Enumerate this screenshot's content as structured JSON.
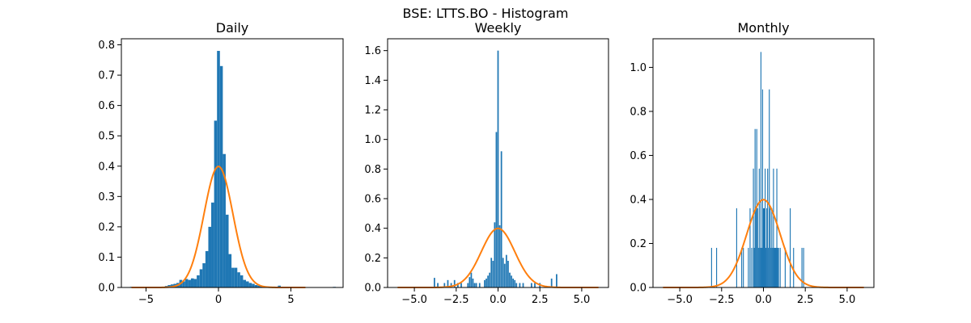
{
  "figure": {
    "title": "BSE: LTTS.BO - Histogram",
    "colors": {
      "bars": "#1f77b4",
      "normal_curve": "#ff7f0e"
    }
  },
  "chart_data": [
    {
      "type": "bar",
      "title": "Daily",
      "xlabel": "",
      "ylabel": "",
      "xlim": [
        -6.7,
        8.6
      ],
      "ylim": [
        0,
        0.82
      ],
      "xticks": [
        -5,
        0,
        5
      ],
      "xtick_labels": [
        "−5",
        "0",
        "5"
      ],
      "yticks": [
        0.0,
        0.1,
        0.2,
        0.3,
        0.4,
        0.5,
        0.6,
        0.7,
        0.8
      ],
      "ytick_labels": [
        "0.0",
        "0.1",
        "0.2",
        "0.3",
        "0.4",
        "0.5",
        "0.6",
        "0.7",
        "0.8"
      ],
      "bar_width": 0.2,
      "bars": [
        {
          "x": -6.0,
          "y": 0.002
        },
        {
          "x": -3.6,
          "y": 0.005
        },
        {
          "x": -3.4,
          "y": 0.008
        },
        {
          "x": -3.2,
          "y": 0.01
        },
        {
          "x": -3.0,
          "y": 0.012
        },
        {
          "x": -2.8,
          "y": 0.015
        },
        {
          "x": -2.6,
          "y": 0.025
        },
        {
          "x": -2.4,
          "y": 0.02
        },
        {
          "x": -2.2,
          "y": 0.028
        },
        {
          "x": -2.0,
          "y": 0.025
        },
        {
          "x": -1.8,
          "y": 0.03
        },
        {
          "x": -1.6,
          "y": 0.028
        },
        {
          "x": -1.4,
          "y": 0.04
        },
        {
          "x": -1.2,
          "y": 0.06
        },
        {
          "x": -1.0,
          "y": 0.08
        },
        {
          "x": -0.8,
          "y": 0.12
        },
        {
          "x": -0.6,
          "y": 0.2
        },
        {
          "x": -0.4,
          "y": 0.28
        },
        {
          "x": -0.2,
          "y": 0.55
        },
        {
          "x": 0.0,
          "y": 0.78
        },
        {
          "x": 0.2,
          "y": 0.73
        },
        {
          "x": 0.4,
          "y": 0.44
        },
        {
          "x": 0.6,
          "y": 0.24
        },
        {
          "x": 0.8,
          "y": 0.11
        },
        {
          "x": 1.0,
          "y": 0.065
        },
        {
          "x": 1.2,
          "y": 0.065
        },
        {
          "x": 1.4,
          "y": 0.05
        },
        {
          "x": 1.6,
          "y": 0.04
        },
        {
          "x": 1.8,
          "y": 0.025
        },
        {
          "x": 2.0,
          "y": 0.02
        },
        {
          "x": 2.2,
          "y": 0.015
        },
        {
          "x": 2.4,
          "y": 0.012
        },
        {
          "x": 2.6,
          "y": 0.008
        },
        {
          "x": 2.8,
          "y": 0.006
        },
        {
          "x": 3.0,
          "y": 0.005
        },
        {
          "x": 4.2,
          "y": 0.006
        },
        {
          "x": 8.0,
          "y": 0.002
        }
      ],
      "pdf_x_range": [
        -6,
        6
      ]
    },
    {
      "type": "bar",
      "title": "Weekly",
      "xlabel": "",
      "ylabel": "",
      "xlim": [
        -6.6,
        6.6
      ],
      "ylim": [
        0,
        1.68
      ],
      "xticks": [
        -5,
        -2.5,
        0,
        2.5,
        5
      ],
      "xtick_labels": [
        "−5.0",
        "−2.5",
        "0.0",
        "2.5",
        "5.0"
      ],
      "yticks": [
        0.0,
        0.2,
        0.4,
        0.6,
        0.8,
        1.0,
        1.2,
        1.4,
        1.6
      ],
      "ytick_labels": [
        "0.0",
        "0.2",
        "0.4",
        "0.6",
        "0.8",
        "1.0",
        "1.2",
        "1.4",
        "1.6"
      ],
      "bar_width": 0.085,
      "bars": [
        {
          "x": -3.8,
          "y": 0.065
        },
        {
          "x": -3.6,
          "y": 0.03
        },
        {
          "x": -3.2,
          "y": 0.03
        },
        {
          "x": -3.0,
          "y": 0.05
        },
        {
          "x": -2.8,
          "y": 0.03
        },
        {
          "x": -2.6,
          "y": 0.05
        },
        {
          "x": -2.4,
          "y": 0.03
        },
        {
          "x": -2.2,
          "y": 0.03
        },
        {
          "x": -1.8,
          "y": 0.03
        },
        {
          "x": -1.7,
          "y": 0.07
        },
        {
          "x": -1.6,
          "y": 0.1
        },
        {
          "x": -1.5,
          "y": 0.06
        },
        {
          "x": -1.4,
          "y": 0.03
        },
        {
          "x": -1.3,
          "y": 0.03
        },
        {
          "x": -1.1,
          "y": 0.03
        },
        {
          "x": -0.8,
          "y": 0.05
        },
        {
          "x": -0.7,
          "y": 0.06
        },
        {
          "x": -0.6,
          "y": 0.08
        },
        {
          "x": -0.5,
          "y": 0.1
        },
        {
          "x": -0.4,
          "y": 0.2
        },
        {
          "x": -0.3,
          "y": 0.18
        },
        {
          "x": -0.2,
          "y": 0.44
        },
        {
          "x": -0.1,
          "y": 1.05
        },
        {
          "x": 0.0,
          "y": 1.6
        },
        {
          "x": 0.1,
          "y": 0.42
        },
        {
          "x": 0.2,
          "y": 0.92
        },
        {
          "x": 0.3,
          "y": 0.2
        },
        {
          "x": 0.4,
          "y": 0.16
        },
        {
          "x": 0.5,
          "y": 0.22
        },
        {
          "x": 0.6,
          "y": 0.18
        },
        {
          "x": 0.7,
          "y": 0.1
        },
        {
          "x": 0.8,
          "y": 0.08
        },
        {
          "x": 0.9,
          "y": 0.06
        },
        {
          "x": 1.0,
          "y": 0.05
        },
        {
          "x": 1.1,
          "y": 0.03
        },
        {
          "x": 1.3,
          "y": 0.03
        },
        {
          "x": 1.5,
          "y": 0.03
        },
        {
          "x": 2.0,
          "y": 0.03
        },
        {
          "x": 2.2,
          "y": 0.03
        },
        {
          "x": 2.5,
          "y": 0.03
        },
        {
          "x": 3.2,
          "y": 0.06
        },
        {
          "x": 3.5,
          "y": 0.09
        }
      ],
      "pdf_x_range": [
        -6,
        6
      ]
    },
    {
      "type": "bar",
      "title": "Monthly",
      "xlabel": "",
      "ylabel": "",
      "xlim": [
        -6.6,
        6.6
      ],
      "ylim": [
        0,
        1.13
      ],
      "xticks": [
        -5,
        -2.5,
        0,
        2.5,
        5
      ],
      "xtick_labels": [
        "−5.0",
        "−2.5",
        "0.0",
        "2.5",
        "5.0"
      ],
      "yticks": [
        0.0,
        0.2,
        0.4,
        0.6,
        0.8,
        1.0
      ],
      "ytick_labels": [
        "0.0",
        "0.2",
        "0.4",
        "0.6",
        "0.8",
        "1.0"
      ],
      "bar_width": 0.055,
      "bars": [
        {
          "x": -3.1,
          "y": 0.18
        },
        {
          "x": -2.8,
          "y": 0.18
        },
        {
          "x": -1.6,
          "y": 0.36
        },
        {
          "x": -1.3,
          "y": 0.18
        },
        {
          "x": -1.2,
          "y": 0.18
        },
        {
          "x": -0.9,
          "y": 0.18
        },
        {
          "x": -0.8,
          "y": 0.36
        },
        {
          "x": -0.7,
          "y": 0.18
        },
        {
          "x": -0.6,
          "y": 0.54
        },
        {
          "x": -0.55,
          "y": 0.18
        },
        {
          "x": -0.5,
          "y": 0.72
        },
        {
          "x": -0.45,
          "y": 0.36
        },
        {
          "x": -0.4,
          "y": 0.72
        },
        {
          "x": -0.35,
          "y": 0.36
        },
        {
          "x": -0.3,
          "y": 0.18
        },
        {
          "x": -0.25,
          "y": 0.54
        },
        {
          "x": -0.2,
          "y": 0.18
        },
        {
          "x": -0.15,
          "y": 1.07
        },
        {
          "x": -0.1,
          "y": 0.18
        },
        {
          "x": -0.05,
          "y": 0.9
        },
        {
          "x": 0.0,
          "y": 0.36
        },
        {
          "x": 0.05,
          "y": 0.36
        },
        {
          "x": 0.1,
          "y": 0.54
        },
        {
          "x": 0.15,
          "y": 0.18
        },
        {
          "x": 0.2,
          "y": 0.36
        },
        {
          "x": 0.25,
          "y": 0.54
        },
        {
          "x": 0.3,
          "y": 0.18
        },
        {
          "x": 0.35,
          "y": 0.9
        },
        {
          "x": 0.4,
          "y": 0.36
        },
        {
          "x": 0.45,
          "y": 0.18
        },
        {
          "x": 0.5,
          "y": 0.36
        },
        {
          "x": 0.55,
          "y": 0.18
        },
        {
          "x": 0.6,
          "y": 0.54
        },
        {
          "x": 0.65,
          "y": 0.18
        },
        {
          "x": 0.7,
          "y": 0.18
        },
        {
          "x": 0.75,
          "y": 0.18
        },
        {
          "x": 0.8,
          "y": 0.54
        },
        {
          "x": 0.85,
          "y": 0.18
        },
        {
          "x": 0.9,
          "y": 0.18
        },
        {
          "x": 1.0,
          "y": 0.18
        },
        {
          "x": 1.3,
          "y": 0.18
        },
        {
          "x": 1.6,
          "y": 0.36
        },
        {
          "x": 1.8,
          "y": 0.18
        },
        {
          "x": 2.3,
          "y": 0.18
        },
        {
          "x": 2.4,
          "y": 0.18
        }
      ],
      "pdf_x_range": [
        -6,
        6
      ]
    }
  ]
}
